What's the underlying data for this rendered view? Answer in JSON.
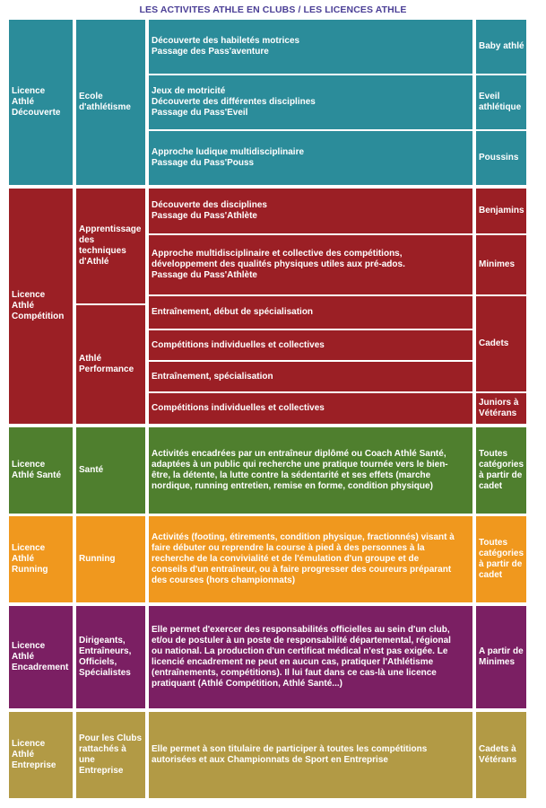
{
  "title": "LES ACTIVITES ATHLE EN CLUBS / LES LICENCES ATHLE",
  "colors": {
    "decouverte": "#2b8c9a",
    "competition": "#9b1f25",
    "sante": "#4f7f2e",
    "running": "#f0981e",
    "encadrement": "#7b1f63",
    "entreprise": "#b29a45",
    "title": "#4b3f96"
  },
  "decouverte": {
    "licence": "Licence\nAthlé\nDécouverte",
    "type": "Ecole\nd'athlétisme",
    "rows": [
      {
        "activity": "Découverte des habiletés motrices\nPassage des Pass'aventure",
        "category": "Baby athlé"
      },
      {
        "activity": "Jeux de motricité\nDécouverte des différentes disciplines\nPassage du Pass'Eveil",
        "category": "Eveil\nathlétique"
      },
      {
        "activity": "Approche ludique multidisciplinaire\nPassage du Pass'Pouss",
        "category": "Poussins"
      }
    ]
  },
  "competition": {
    "licence": "Licence\nAthlé\nCompétition",
    "type_1": "Apprentissage\ndes\ntechniques\nd'Athlé",
    "type_2": "Athlé\nPerformance",
    "rows": [
      {
        "activity": "Découverte des disciplines\nPassage du Pass'Athlète",
        "category": "Benjamins"
      },
      {
        "activity": "Approche multidisciplinaire et collective des compétitions,\ndéveloppement des qualités physiques utiles aux pré-ados.\nPassage du Pass'Athlète",
        "category": "Minimes"
      },
      {
        "activity": "Entraînement, début de spécialisation"
      },
      {
        "activity": "Compétitions individuelles et collectives",
        "category": "Cadets"
      },
      {
        "activity": "Entraînement, spécialisation"
      },
      {
        "activity": "Compétitions individuelles et collectives",
        "category": "Juniors à\nVétérans"
      }
    ]
  },
  "sante": {
    "licence": "Licence\nAthlé Santé",
    "type": "Santé",
    "activity": "Activités encadrées par un entraîneur diplômé ou Coach Athlé Santé,\nadaptées à un public qui recherche une pratique tournée vers le bien-\nêtre, la détente, la lutte contre la sédentarité et ses effets (marche\nnordique, running entretien, remise en forme, condition physique)",
    "category": "Toutes\ncatégories\nà partir de\ncadet"
  },
  "running": {
    "licence": "Licence\nAthlé\nRunning",
    "type": "Running",
    "activity": "Activités (footing, étirements, condition physique, fractionnés) visant à\nfaire débuter ou reprendre la course à pied à des personnes à la\nrecherche de la convivialité et de l'émulation d'un groupe et de\nconseils d'un entraîneur, ou à faire progresser des coureurs préparant\ndes courses (hors championnats)",
    "category": "Toutes\ncatégories\nà partir de\ncadet"
  },
  "encadrement": {
    "licence": "Licence\nAthlé\nEncadrement",
    "type": "Dirigeants,\nEntraîneurs,\nOfficiels,\nSpécialistes",
    "activity": "Elle permet d'exercer des responsabilités officielles au sein d'un club,\net/ou de postuler à un poste de responsabilité départemental, régional\nou national. La production d'un certificat médical n'est pas exigée. Le\nlicencié encadrement ne peut en aucun cas, pratiquer l'Athlétisme\n(entraînements, compétitions). Il lui faut dans ce cas-là une licence\npratiquant (Athlé Compétition, Athlé Santé...)",
    "category": "A partir de\nMinimes"
  },
  "entreprise": {
    "licence": "Licence\nAthlé\nEntreprise",
    "type": "Pour les Clubs\nrattachés à\nune\nEntreprise",
    "activity": "Elle permet à son titulaire de participer à toutes les compétitions\nautorisées et aux Championnats de Sport en Entreprise",
    "category": "Cadets à\nVétérans"
  }
}
